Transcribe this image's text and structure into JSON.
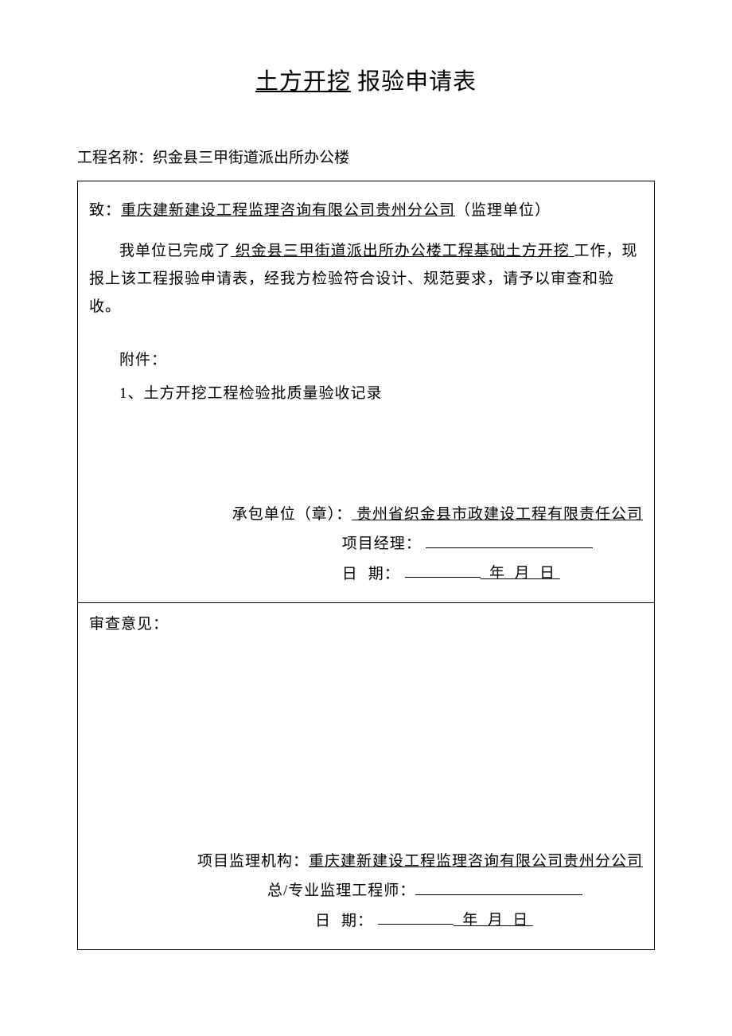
{
  "title": {
    "prefix_underlined": "土方开挖",
    "suffix": " 报验申请表"
  },
  "project_name": {
    "label": "工程名称：",
    "value": "织金县三甲街道派出所办公楼"
  },
  "upper_section": {
    "to_label": "致：",
    "to_company": "重庆建新建设工程监理咨询有限公司贵州分公司",
    "to_suffix": "（监理单位）",
    "body_prefix": "我单位已完成了",
    "body_project_underlined": " 织金县三甲街道派出所办公楼工程基础土方开挖 ",
    "body_suffix": "工作，现报上该工程报验申请表，经我方检验符合设计、规范要求，请予以审查和验收。",
    "attachment_label": "附件：",
    "attachment_items": [
      "1、土方开挖工程检验批质量验收记录"
    ],
    "signature": {
      "contractor_label": "承包单位（章）：",
      "contractor_name": " 贵州省织金县市政建设工程有限责任公司",
      "pm_label": "项目经理：",
      "date_label": "日",
      "date_label2": "期：",
      "year_label": "年",
      "month_label": "月",
      "day_label": "日"
    }
  },
  "lower_section": {
    "review_label": "审查意见：",
    "signature": {
      "supervisor_org_label": "项目监理机构：",
      "supervisor_org_name": "重庆建新建设工程监理咨询有限公司贵州分公司",
      "engineer_label": "总/专业监理工程师：",
      "date_label": "日",
      "date_label2": "期：",
      "year_label": "年",
      "month_label": "月",
      "day_label": "日"
    }
  }
}
